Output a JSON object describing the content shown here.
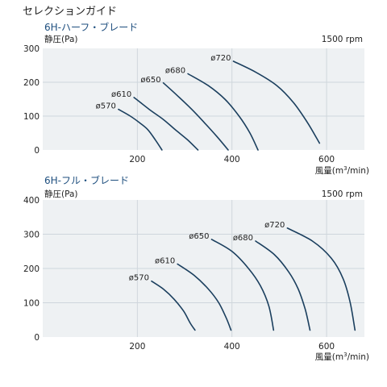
{
  "page_title": "セレクションガイド",
  "chart_data": [
    {
      "type": "line",
      "title": "6H-ハーフ・ブレード",
      "ylabel": "静圧(Pa)",
      "xlabel": "風量(m³/min)",
      "note": "1500 rpm",
      "xlim": [
        0,
        680
      ],
      "ylim": [
        0,
        300
      ],
      "xticks": [
        0,
        200,
        400,
        600
      ],
      "yticks": [
        0,
        100,
        200,
        300
      ],
      "grid": true,
      "series": [
        {
          "name": "ø570",
          "x": [
            160,
            185,
            205,
            222,
            238,
            252
          ],
          "y": [
            120,
            100,
            80,
            60,
            30,
            0
          ]
        },
        {
          "name": "ø610",
          "x": [
            193,
            225,
            255,
            280,
            306,
            328
          ],
          "y": [
            155,
            120,
            90,
            60,
            30,
            0
          ]
        },
        {
          "name": "ø650",
          "x": [
            255,
            285,
            315,
            342,
            368,
            392
          ],
          "y": [
            198,
            160,
            120,
            80,
            40,
            0
          ]
        },
        {
          "name": "ø680",
          "x": [
            307,
            350,
            385,
            415,
            438,
            455
          ],
          "y": [
            225,
            190,
            150,
            100,
            50,
            0
          ]
        },
        {
          "name": "ø720",
          "x": [
            403,
            450,
            495,
            530,
            560,
            585
          ],
          "y": [
            262,
            230,
            190,
            140,
            80,
            20
          ]
        }
      ]
    },
    {
      "type": "line",
      "title": "6H-フル・ブレード",
      "ylabel": "静圧(Pa)",
      "xlabel": "風量(m³/min)",
      "note": "1500 rpm",
      "xlim": [
        0,
        680
      ],
      "ylim": [
        0,
        400
      ],
      "xticks": [
        0,
        200,
        400,
        600
      ],
      "yticks": [
        0,
        100,
        200,
        300,
        400
      ],
      "grid": true,
      "series": [
        {
          "name": "ø570",
          "x": [
            230,
            255,
            278,
            298,
            312,
            322
          ],
          "y": [
            163,
            140,
            110,
            75,
            40,
            20
          ]
        },
        {
          "name": "ø610",
          "x": [
            285,
            320,
            350,
            372,
            388,
            398
          ],
          "y": [
            213,
            180,
            140,
            100,
            55,
            20
          ]
        },
        {
          "name": "ø650",
          "x": [
            357,
            400,
            435,
            460,
            478,
            488
          ],
          "y": [
            285,
            250,
            200,
            150,
            90,
            20
          ]
        },
        {
          "name": "ø680",
          "x": [
            450,
            490,
            520,
            540,
            555,
            565
          ],
          "y": [
            280,
            240,
            190,
            140,
            80,
            20
          ]
        },
        {
          "name": "ø720",
          "x": [
            517,
            570,
            610,
            635,
            650,
            660
          ],
          "y": [
            318,
            280,
            230,
            170,
            100,
            20
          ]
        }
      ]
    }
  ]
}
